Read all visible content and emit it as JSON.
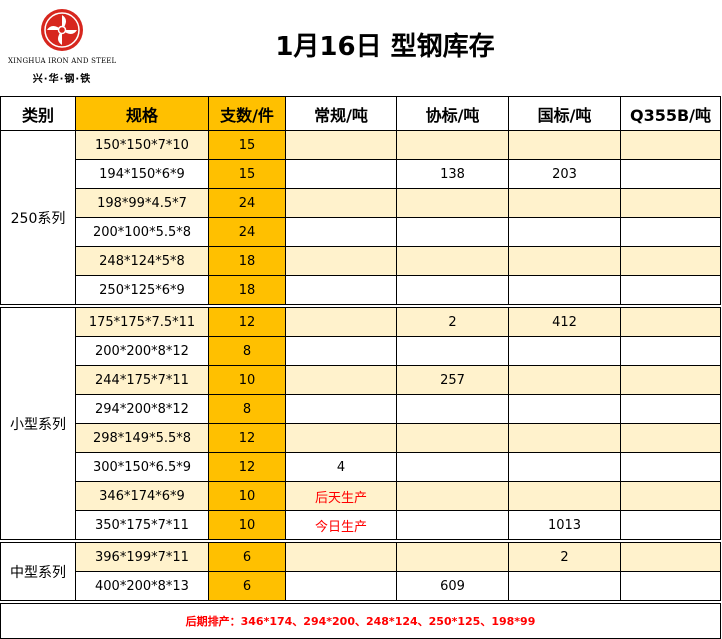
{
  "logo": {
    "en": "XINGHUA IRON AND STEEL",
    "cn": "兴·华·钢·铁",
    "brand_color": "#d7261e"
  },
  "title": "1月16日 型钢库存",
  "headers": [
    "类别",
    "规格",
    "支数/件",
    "常规/吨",
    "协标/吨",
    "国标/吨",
    "Q355B/吨"
  ],
  "groups": [
    {
      "name": "250系列",
      "rows": [
        {
          "spec": "150*150*7*10",
          "qty": "15",
          "regular": "",
          "assoc": "",
          "national": "",
          "q355b": ""
        },
        {
          "spec": "194*150*6*9",
          "qty": "15",
          "regular": "",
          "assoc": "138",
          "national": "203",
          "q355b": ""
        },
        {
          "spec": "198*99*4.5*7",
          "qty": "24",
          "regular": "",
          "assoc": "",
          "national": "",
          "q355b": ""
        },
        {
          "spec": "200*100*5.5*8",
          "qty": "24",
          "regular": "",
          "assoc": "",
          "national": "",
          "q355b": ""
        },
        {
          "spec": "248*124*5*8",
          "qty": "18",
          "regular": "",
          "assoc": "",
          "national": "",
          "q355b": ""
        },
        {
          "spec": "250*125*6*9",
          "qty": "18",
          "regular": "",
          "assoc": "",
          "national": "",
          "q355b": ""
        }
      ]
    },
    {
      "name": "小型系列",
      "rows": [
        {
          "spec": "175*175*7.5*11",
          "qty": "12",
          "regular": "",
          "assoc": "2",
          "national": "412",
          "q355b": ""
        },
        {
          "spec": "200*200*8*12",
          "qty": "8",
          "regular": "",
          "assoc": "",
          "national": "",
          "q355b": ""
        },
        {
          "spec": "244*175*7*11",
          "qty": "10",
          "regular": "",
          "assoc": "257",
          "national": "",
          "q355b": ""
        },
        {
          "spec": "294*200*8*12",
          "qty": "8",
          "regular": "",
          "assoc": "",
          "national": "",
          "q355b": ""
        },
        {
          "spec": "298*149*5.5*8",
          "qty": "12",
          "regular": "",
          "assoc": "",
          "national": "",
          "q355b": ""
        },
        {
          "spec": "300*150*6.5*9",
          "qty": "12",
          "regular": "4",
          "assoc": "",
          "national": "",
          "q355b": ""
        },
        {
          "spec": "346*174*6*9",
          "qty": "10",
          "regular": "后天生产",
          "regular_red": true,
          "assoc": "",
          "national": "",
          "q355b": ""
        },
        {
          "spec": "350*175*7*11",
          "qty": "10",
          "regular": "今日生产",
          "regular_red": true,
          "assoc": "",
          "national": "1013",
          "q355b": ""
        }
      ]
    },
    {
      "name": "中型系列",
      "rows": [
        {
          "spec": "396*199*7*11",
          "qty": "6",
          "regular": "",
          "assoc": "",
          "national": "2",
          "q355b": ""
        },
        {
          "spec": "400*200*8*13",
          "qty": "6",
          "regular": "",
          "assoc": "609",
          "national": "",
          "q355b": ""
        }
      ]
    }
  ],
  "footer": "后期排产：346*174、294*200、248*124、250*125、198*99",
  "colors": {
    "gold": "#ffc000",
    "light": "#fff2cc",
    "red": "#ff0000"
  }
}
